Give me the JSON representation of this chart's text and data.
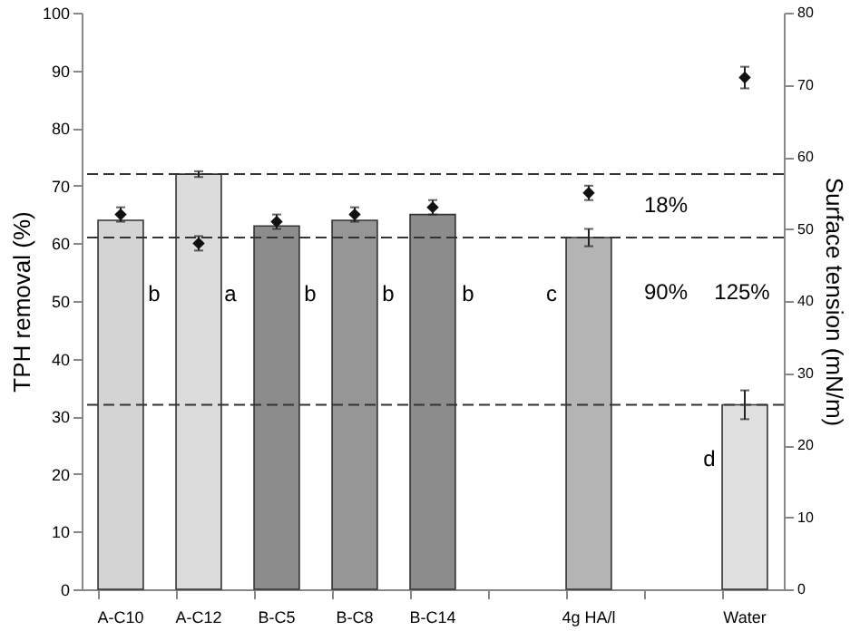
{
  "chart_data": {
    "type": "bar",
    "categories": [
      "A-C10",
      "A-C12",
      "B-C5",
      "B-C8",
      "B-C14",
      null,
      "4g HA/l",
      null,
      "Water"
    ],
    "series": [
      {
        "values": [
          64,
          72,
          63,
          64,
          65,
          null,
          61,
          null,
          32
        ],
        "colors": [
          "#d4d4d4",
          "#dcdcdc",
          "#8c8c8c",
          "#969696",
          "#8c8c8c",
          null,
          "#b4b4b4",
          null,
          "#e0e0e0"
        ],
        "errors": [
          null,
          0.5,
          null,
          null,
          null,
          null,
          1.5,
          null,
          2.5
        ]
      },
      {
        "type": "scatter",
        "axis": "y2",
        "color": "#111111",
        "values": [
          52,
          48,
          51,
          52,
          53,
          null,
          55,
          null,
          71
        ],
        "errors": [
          1,
          1,
          1,
          1,
          1,
          null,
          1,
          null,
          1.5
        ]
      }
    ],
    "xlabel": null,
    "ylabel": "TPH removal (%)",
    "y2label": "Surface tension (mN/m)",
    "ylim": [
      0,
      100
    ],
    "yticks": [
      0,
      10,
      20,
      30,
      40,
      50,
      60,
      70,
      80,
      90,
      100
    ],
    "y2lim": [
      0,
      80
    ],
    "y2ticks": [
      0,
      10,
      20,
      30,
      40,
      50,
      60,
      70,
      80
    ],
    "marker": "diamond",
    "ref_lines": [
      {
        "axis": "y",
        "value": 72,
        "line_style": "dashed",
        "color": "#333333"
      },
      {
        "axis": "y",
        "value": 61,
        "line_style": "dashed",
        "color": "#333333"
      },
      {
        "axis": "y",
        "value": 32,
        "line_style": "dashed",
        "color": "#333333"
      }
    ],
    "annotations": [
      "b",
      "a",
      "b",
      "b",
      "b",
      "c",
      "d",
      "18%",
      "90%",
      "125%"
    ],
    "grid": false
  }
}
